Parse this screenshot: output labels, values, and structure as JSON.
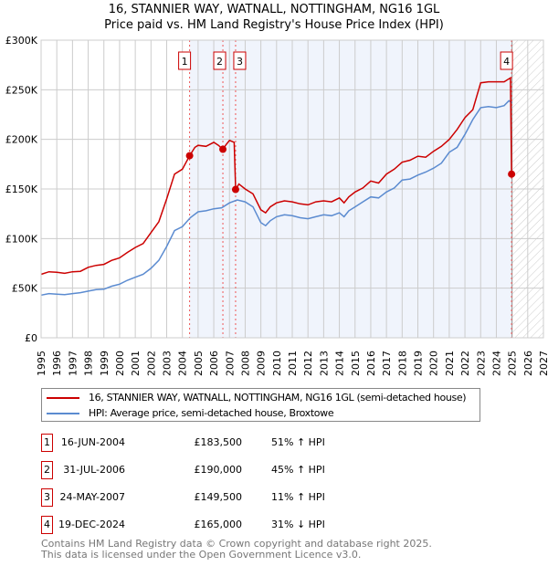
{
  "title": "16, STANNIER WAY, WATNALL, NOTTINGHAM, NG16 1GL",
  "subtitle": "Price paid vs. HM Land Registry's House Price Index (HPI)",
  "chart_data": {
    "type": "line",
    "xlim": [
      1995,
      2027
    ],
    "ylim": [
      0,
      300000
    ],
    "y_ticks": [
      {
        "v": 0,
        "label": "£0"
      },
      {
        "v": 50000,
        "label": "£50K"
      },
      {
        "v": 100000,
        "label": "£100K"
      },
      {
        "v": 150000,
        "label": "£150K"
      },
      {
        "v": 200000,
        "label": "£200K"
      },
      {
        "v": 250000,
        "label": "£250K"
      },
      {
        "v": 300000,
        "label": "£300K"
      }
    ],
    "x_ticks": [
      "1995",
      "1996",
      "1997",
      "1998",
      "1999",
      "2000",
      "2001",
      "2002",
      "2003",
      "2004",
      "2005",
      "2006",
      "2007",
      "2008",
      "2009",
      "2010",
      "2011",
      "2012",
      "2013",
      "2014",
      "2015",
      "2016",
      "2017",
      "2018",
      "2019",
      "2020",
      "2021",
      "2022",
      "2023",
      "2024",
      "2025",
      "2026",
      "2027"
    ],
    "data_end": 2025.0,
    "series": [
      {
        "name": "16, STANNIER WAY, WATNALL, NOTTINGHAM, NG16 1GL (semi-detached house)",
        "color": "#cc0000",
        "x": [
          1995,
          1995.5,
          1996,
          1996.5,
          1997,
          1997.5,
          1998,
          1998.5,
          1999,
          1999.5,
          2000,
          2000.5,
          2001,
          2001.5,
          2002,
          2002.5,
          2003,
          2003.5,
          2004,
          2004.46,
          2004.8,
          2005,
          2005.5,
          2006,
          2006.3,
          2006.58,
          2006.8,
          2007,
          2007.3,
          2007.39,
          2007.6,
          2008,
          2008.5,
          2009,
          2009.3,
          2009.6,
          2010,
          2010.5,
          2011,
          2011.5,
          2012,
          2012.5,
          2013,
          2013.5,
          2014,
          2014.3,
          2014.6,
          2015,
          2015.5,
          2016,
          2016.5,
          2017,
          2017.5,
          2018,
          2018.5,
          2019,
          2019.5,
          2020,
          2020.5,
          2021,
          2021.5,
          2022,
          2022.5,
          2023,
          2023.5,
          2024,
          2024.5,
          2024.9,
          2024.97
        ],
        "y": [
          64000,
          66500,
          66000,
          65000,
          66500,
          67000,
          71000,
          73000,
          74000,
          78000,
          80500,
          86000,
          91000,
          95000,
          106000,
          117000,
          140000,
          165000,
          170000,
          183500,
          192000,
          194000,
          193000,
          197000,
          194000,
          190000,
          195000,
          199000,
          197000,
          149500,
          155000,
          150000,
          145000,
          129000,
          126000,
          132000,
          136000,
          138000,
          137000,
          135000,
          134000,
          137000,
          138000,
          137000,
          141000,
          136000,
          142000,
          147000,
          151000,
          158000,
          156000,
          165000,
          170000,
          177000,
          179000,
          183000,
          182000,
          188000,
          193000,
          200000,
          210000,
          222000,
          230000,
          257000,
          258000,
          258000,
          258000,
          262000,
          165000
        ]
      },
      {
        "name": "HPI: Average price, semi-detached house, Broxtowe",
        "color": "#5b8bd0",
        "x": [
          1995,
          1995.5,
          1996,
          1996.5,
          1997,
          1997.5,
          1998,
          1998.5,
          1999,
          1999.5,
          2000,
          2000.5,
          2001,
          2001.5,
          2002,
          2002.5,
          2003,
          2003.5,
          2004,
          2004.5,
          2005,
          2005.5,
          2006,
          2006.5,
          2007,
          2007.5,
          2008,
          2008.5,
          2009,
          2009.3,
          2009.6,
          2010,
          2010.5,
          2011,
          2011.5,
          2012,
          2012.5,
          2013,
          2013.5,
          2014,
          2014.3,
          2014.6,
          2015,
          2015.5,
          2016,
          2016.5,
          2017,
          2017.5,
          2018,
          2018.5,
          2019,
          2019.5,
          2020,
          2020.5,
          2021,
          2021.5,
          2022,
          2022.5,
          2023,
          2023.5,
          2024,
          2024.5,
          2024.8,
          2025
        ],
        "y": [
          43000,
          44500,
          44000,
          43500,
          44500,
          45500,
          47000,
          48500,
          49000,
          52000,
          54000,
          58000,
          61000,
          64000,
          70000,
          78000,
          92000,
          108000,
          112000,
          121000,
          127000,
          128000,
          130000,
          131000,
          136000,
          139000,
          137000,
          132000,
          116000,
          113000,
          118000,
          122000,
          124000,
          123000,
          121000,
          120000,
          122000,
          124000,
          123000,
          126000,
          122000,
          128000,
          132000,
          137000,
          142000,
          141000,
          147000,
          151000,
          159000,
          160000,
          164000,
          167000,
          171000,
          176000,
          187000,
          192000,
          205000,
          220000,
          232000,
          233000,
          232000,
          234000,
          239000,
          237000
        ]
      }
    ],
    "sales": [
      {
        "n": "1",
        "x": 2004.46,
        "y": 183500
      },
      {
        "n": "2",
        "x": 2006.58,
        "y": 190000
      },
      {
        "n": "3",
        "x": 2007.39,
        "y": 149500
      },
      {
        "n": "4",
        "x": 2024.97,
        "y": 165000
      }
    ]
  },
  "legend": {
    "red": "16, STANNIER WAY, WATNALL, NOTTINGHAM, NG16 1GL (semi-detached house)",
    "blue": "HPI: Average price, semi-detached house, Broxtowe"
  },
  "table": [
    {
      "n": "1",
      "date": "16-JUN-2004",
      "price": "£183,500",
      "hpi": "51% ↑ HPI"
    },
    {
      "n": "2",
      "date": "31-JUL-2006",
      "price": "£190,000",
      "hpi": "45% ↑ HPI"
    },
    {
      "n": "3",
      "date": "24-MAY-2007",
      "price": "£149,500",
      "hpi": "11% ↑ HPI"
    },
    {
      "n": "4",
      "date": "19-DEC-2024",
      "price": "£165,000",
      "hpi": "31% ↓ HPI"
    }
  ],
  "footer": {
    "line1": "Contains HM Land Registry data © Crown copyright and database right 2025.",
    "line2": "This data is licensed under the Open Government Licence v3.0."
  }
}
